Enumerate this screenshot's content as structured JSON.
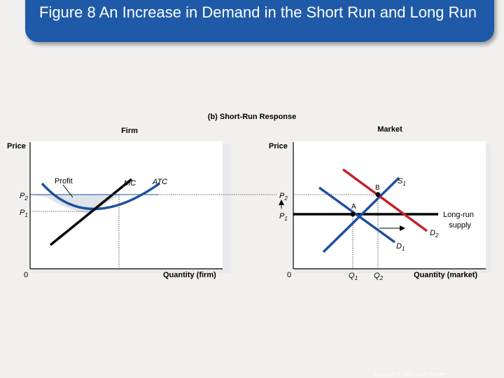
{
  "title": "Figure 8 An Increase in Demand in the Short Run and Long Run",
  "subtitle": "(b) Short-Run Response",
  "firm": {
    "heading": "Firm",
    "y_label": "Price",
    "x_label": "Quantity (firm)",
    "origin": "0",
    "p2": "P",
    "p2_sub": "2",
    "p1": "P",
    "p1_sub": "1",
    "profit": "Profit",
    "mc": "MC",
    "atc": "ATC"
  },
  "market": {
    "heading": "Market",
    "y_label": "Price",
    "x_label": "Quantity (market)",
    "origin": "0",
    "p2": "P",
    "p2_sub": "2",
    "p1": "P",
    "p1_sub": "1",
    "s1": "S",
    "s1_sub": "1",
    "d1": "D",
    "d1_sub": "1",
    "d2": "D",
    "d2_sub": "2",
    "q1": "Q",
    "q1_sub": "1",
    "q2": "Q",
    "q2_sub": "2",
    "point_a": "A",
    "point_b": "B",
    "long_run_supply_1": "Long-run",
    "long_run_supply_2": "supply"
  },
  "footer": "Copyright © 2004 South-Western",
  "colors": {
    "title_bg": "#1f5aa8",
    "curve_blue": "#1f4fa0",
    "curve_red": "#c8202a",
    "curve_black": "#000000"
  }
}
